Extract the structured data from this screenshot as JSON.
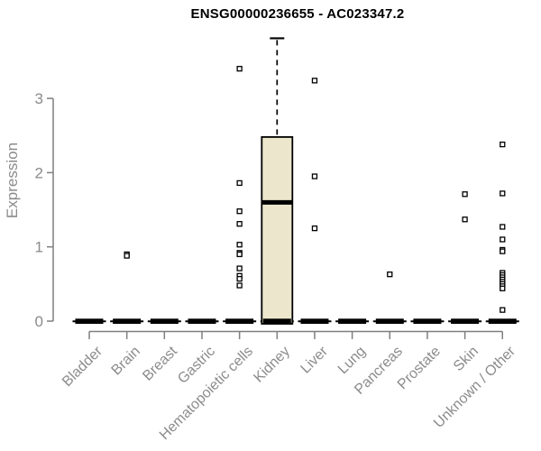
{
  "chart_data": {
    "type": "box",
    "title": "ENSG00000236655 - AC023347.2",
    "ylabel": "Expression",
    "xlabel": "",
    "yticks": [
      0,
      1,
      2,
      3
    ],
    "ylim": [
      0,
      3.85
    ],
    "grid": false,
    "legend": null,
    "categories": [
      "Bladder",
      "Brain",
      "Breast",
      "Gastric",
      "Hematopoietic cells",
      "Kidney",
      "Liver",
      "Lung",
      "Pancreas",
      "Prostate",
      "Skin",
      "Unknown / Other"
    ],
    "series": [
      {
        "name": "Bladder",
        "whisker_low": 0,
        "q1": 0,
        "median": 0,
        "q3": 0,
        "whisker_high": 0,
        "outliers": []
      },
      {
        "name": "Brain",
        "whisker_low": 0,
        "q1": 0,
        "median": 0,
        "q3": 0,
        "whisker_high": 0,
        "outliers": [
          0.9,
          0.88
        ]
      },
      {
        "name": "Breast",
        "whisker_low": 0,
        "q1": 0,
        "median": 0,
        "q3": 0,
        "whisker_high": 0,
        "outliers": []
      },
      {
        "name": "Gastric",
        "whisker_low": 0,
        "q1": 0,
        "median": 0,
        "q3": 0,
        "whisker_high": 0,
        "outliers": []
      },
      {
        "name": "Hematopoietic cells",
        "whisker_low": 0,
        "q1": 0,
        "median": 0,
        "q3": 0,
        "whisker_high": 0,
        "outliers": [
          3.4,
          1.86,
          1.48,
          1.31,
          1.03,
          0.92,
          0.9,
          0.71,
          0.61,
          0.57,
          0.48
        ]
      },
      {
        "name": "Kidney",
        "whisker_low": 0,
        "q1": 0.01,
        "median": 1.6,
        "q3": 2.48,
        "whisker_high": 3.81,
        "outliers": []
      },
      {
        "name": "Liver",
        "whisker_low": 0,
        "q1": 0,
        "median": 0,
        "q3": 0,
        "whisker_high": 0,
        "outliers": [
          3.24,
          1.95,
          1.25
        ]
      },
      {
        "name": "Lung",
        "whisker_low": 0,
        "q1": 0,
        "median": 0,
        "q3": 0,
        "whisker_high": 0,
        "outliers": []
      },
      {
        "name": "Pancreas",
        "whisker_low": 0,
        "q1": 0,
        "median": 0,
        "q3": 0,
        "whisker_high": 0,
        "outliers": [
          0.63
        ]
      },
      {
        "name": "Prostate",
        "whisker_low": 0,
        "q1": 0,
        "median": 0,
        "q3": 0,
        "whisker_high": 0,
        "outliers": []
      },
      {
        "name": "Skin",
        "whisker_low": 0,
        "q1": 0,
        "median": 0,
        "q3": 0,
        "whisker_high": 0,
        "outliers": [
          1.71,
          1.37
        ]
      },
      {
        "name": "Unknown / Other",
        "whisker_low": 0,
        "q1": 0,
        "median": 0,
        "q3": 0,
        "whisker_high": 0,
        "outliers": [
          2.38,
          1.72,
          1.27,
          1.1,
          0.96,
          0.94,
          0.65,
          0.62,
          0.59,
          0.56,
          0.53,
          0.5,
          0.47,
          0.44,
          0.15
        ]
      }
    ],
    "colors": {
      "box_fill": "#ece7cc",
      "box_border": "#000000",
      "axis": "#7f7f7f",
      "labels": "#8b8b8b",
      "title": "#000000",
      "background": "#ffffff"
    }
  }
}
